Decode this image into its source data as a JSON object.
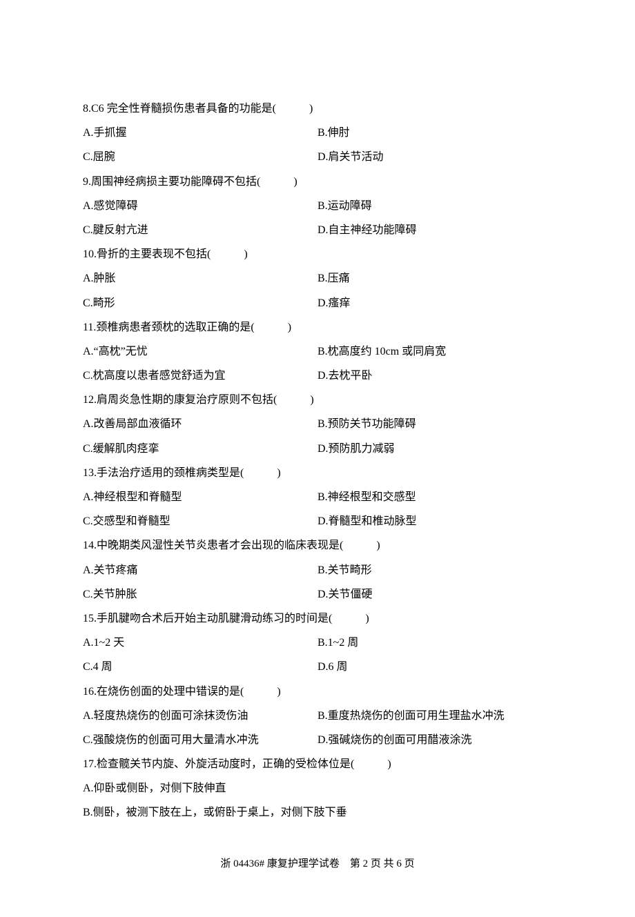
{
  "questions": [
    {
      "num": "8",
      "text": "8.C6 完全性脊髓损伤患者具备的功能是(　　　)",
      "opts": [
        {
          "l": "A.手抓握",
          "r": "B.伸肘"
        },
        {
          "l": "C.屈腕",
          "r": "D.肩关节活动"
        }
      ]
    },
    {
      "num": "9",
      "text": "9.周围神经病损主要功能障碍不包括(　　　)",
      "opts": [
        {
          "l": "A.感觉障碍",
          "r": "B.运动障碍"
        },
        {
          "l": "C.腱反射亢进",
          "r": "D.自主神经功能障碍"
        }
      ]
    },
    {
      "num": "10",
      "text": "10.骨折的主要表现不包括(　　　)",
      "opts": [
        {
          "l": "A.肿胀",
          "r": "B.压痛"
        },
        {
          "l": "C.畸形",
          "r": "D.瘙痒"
        }
      ]
    },
    {
      "num": "11",
      "text": "11.颈椎病患者颈枕的选取正确的是(　　　)",
      "opts": [
        {
          "l": "A.“高枕”无忧",
          "r": "B.枕高度约 10cm 或同肩宽"
        },
        {
          "l": "C.枕高度以患者感觉舒适为宜",
          "r": "D.去枕平卧"
        }
      ]
    },
    {
      "num": "12",
      "text": "12.肩周炎急性期的康复治疗原则不包括(　　　)",
      "opts": [
        {
          "l": "A.改善局部血液循环",
          "r": "B.预防关节功能障碍"
        },
        {
          "l": "C.缓解肌肉痉挛",
          "r": "D.预防肌力减弱"
        }
      ]
    },
    {
      "num": "13",
      "text": "13.手法治疗适用的颈椎病类型是(　　　)",
      "opts": [
        {
          "l": "A.神经根型和脊髓型",
          "r": "B.神经根型和交感型"
        },
        {
          "l": "C.交感型和脊髓型",
          "r": "D.脊髓型和椎动脉型"
        }
      ]
    },
    {
      "num": "14",
      "text": "14.中晚期类风湿性关节炎患者才会出现的临床表现是(　　　)",
      "opts": [
        {
          "l": "A.关节疼痛",
          "r": "B.关节畸形"
        },
        {
          "l": "C.关节肿胀",
          "r": "D.关节僵硬"
        }
      ]
    },
    {
      "num": "15",
      "text": "15.手肌腱吻合术后开始主动肌腱滑动练习的时间是(　　　)",
      "opts": [
        {
          "l": "A.1~2 天",
          "r": "B.1~2 周"
        },
        {
          "l": "C.4 周",
          "r": "D.6 周"
        }
      ]
    },
    {
      "num": "16",
      "text": "16.在烧伤创面的处理中错误的是(　　　)",
      "opts": [
        {
          "l": "A.轻度热烧伤的创面可涂抹烫伤油",
          "r": "B.重度热烧伤的创面可用生理盐水冲洗"
        },
        {
          "l": "C.强酸烧伤的创面可用大量清水冲洗",
          "r": "D.强碱烧伤的创面可用醋液涂洗"
        }
      ]
    },
    {
      "num": "17",
      "text": "17.检查髋关节内旋、外旋活动度时，正确的受检体位是(　　　)",
      "fullopts": [
        "A.仰卧或侧卧，对侧下肢伸直",
        "B.侧卧，被测下肢在上，或俯卧于桌上，对侧下肢下垂"
      ]
    }
  ],
  "footer": "浙 04436#  康复护理学试卷　第  2  页  共  6  页"
}
